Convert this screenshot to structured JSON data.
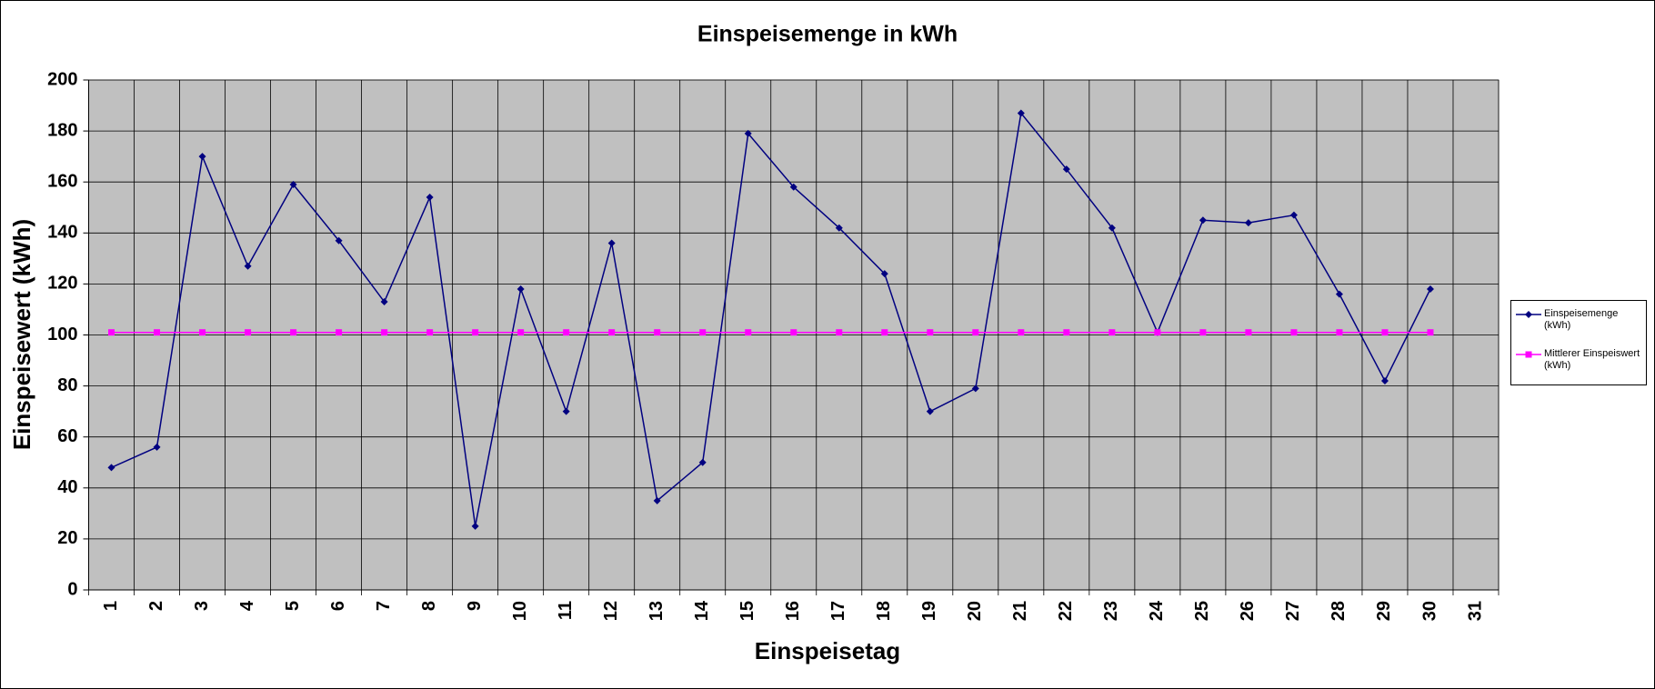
{
  "chart_data": {
    "type": "line",
    "title": "Einspeisemenge in kWh",
    "x_label": "Einspeisetag",
    "y_label": "Einspeisewert  (kWh)",
    "categories": [
      "1",
      "2",
      "3",
      "4",
      "5",
      "6",
      "7",
      "8",
      "9",
      "10",
      "11",
      "12",
      "13",
      "14",
      "15",
      "16",
      "17",
      "18",
      "19",
      "20",
      "21",
      "22",
      "23",
      "24",
      "25",
      "26",
      "27",
      "28",
      "29",
      "30",
      "31"
    ],
    "series": [
      {
        "name": "Einspeisemenge (kWh)",
        "color": "#000080",
        "marker": "diamond",
        "values": [
          48,
          56,
          170,
          127,
          159,
          137,
          113,
          154,
          25,
          118,
          70,
          136,
          35,
          50,
          179,
          158,
          142,
          124,
          70,
          79,
          187,
          165,
          142,
          101,
          145,
          144,
          147,
          116,
          82,
          118,
          null
        ]
      },
      {
        "name": "Mittlerer Einspeiswert (kWh)",
        "color": "#ff00ff",
        "marker": "square",
        "values": [
          101,
          101,
          101,
          101,
          101,
          101,
          101,
          101,
          101,
          101,
          101,
          101,
          101,
          101,
          101,
          101,
          101,
          101,
          101,
          101,
          101,
          101,
          101,
          101,
          101,
          101,
          101,
          101,
          101,
          101,
          null
        ]
      }
    ],
    "ylim": [
      0,
      200
    ],
    "yticks": [
      0,
      20,
      40,
      60,
      80,
      100,
      120,
      140,
      160,
      180,
      200
    ],
    "grid": true,
    "legend": "right",
    "plot_background": "#c0c0c0"
  }
}
